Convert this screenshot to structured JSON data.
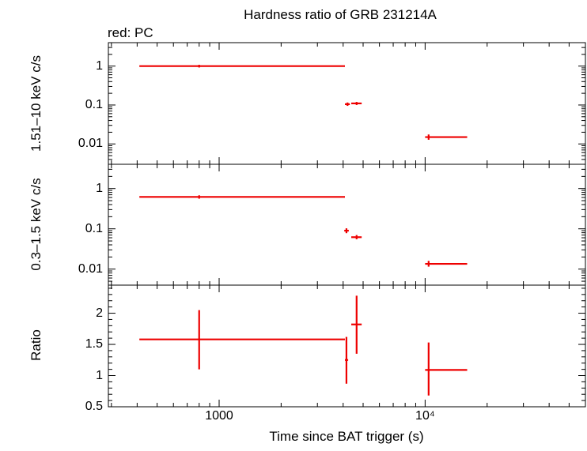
{
  "title": "Hardness ratio of GRB 231214A",
  "legend_note": "red: PC",
  "xlabel": "Time since BAT trigger (s)",
  "colors": {
    "data": "#ee0000",
    "axes": "#000000",
    "background": "#ffffff"
  },
  "chart_data": [
    {
      "type": "scatter",
      "panel": "top",
      "ylabel": "1.51–10 keV c/s",
      "xscale": "log",
      "yscale": "log",
      "xlim": [
        290,
        60000
      ],
      "ylim": [
        0.003,
        4
      ],
      "xticks": [
        1000,
        10000
      ],
      "xtick_labels": [
        "1000",
        "10⁴"
      ],
      "yticks": [
        1,
        0.1,
        0.01
      ],
      "ytick_labels": [
        "1",
        "0.1",
        "0.01"
      ],
      "series": [
        {
          "color": "#ee0000",
          "points": [
            {
              "x": 800,
              "xlo": 410,
              "xhi": 4080,
              "y": 1.0,
              "ylo": 0.92,
              "yhi": 1.08
            },
            {
              "x": 4200,
              "xlo": 4080,
              "xhi": 4310,
              "y": 0.105,
              "ylo": 0.095,
              "yhi": 0.116
            },
            {
              "x": 4650,
              "xlo": 4380,
              "xhi": 4920,
              "y": 0.11,
              "ylo": 0.1,
              "yhi": 0.12
            },
            {
              "x": 10400,
              "xlo": 10000,
              "xhi": 16000,
              "y": 0.015,
              "ylo": 0.0128,
              "yhi": 0.0175
            }
          ]
        }
      ]
    },
    {
      "type": "scatter",
      "panel": "middle",
      "ylabel": "0.3–1.5 keV c/s",
      "xscale": "log",
      "yscale": "log",
      "xlim": [
        290,
        60000
      ],
      "ylim": [
        0.004,
        4
      ],
      "xticks": [
        1000,
        10000
      ],
      "xtick_labels": [
        "1000",
        "10⁴"
      ],
      "yticks": [
        1,
        0.1,
        0.01
      ],
      "ytick_labels": [
        "1",
        "0.1",
        "0.01"
      ],
      "series": [
        {
          "color": "#ee0000",
          "points": [
            {
              "x": 800,
              "xlo": 410,
              "xhi": 4080,
              "y": 0.62,
              "ylo": 0.56,
              "yhi": 0.68
            },
            {
              "x": 4150,
              "xlo": 4050,
              "xhi": 4260,
              "y": 0.09,
              "ylo": 0.078,
              "yhi": 0.103
            },
            {
              "x": 4650,
              "xlo": 4380,
              "xhi": 4920,
              "y": 0.062,
              "ylo": 0.055,
              "yhi": 0.07
            },
            {
              "x": 10400,
              "xlo": 10000,
              "xhi": 16000,
              "y": 0.0135,
              "ylo": 0.0115,
              "yhi": 0.016
            }
          ]
        }
      ]
    },
    {
      "type": "scatter",
      "panel": "bottom",
      "ylabel": "Ratio",
      "xscale": "log",
      "yscale": "linear",
      "xlim": [
        290,
        60000
      ],
      "ylim": [
        0.5,
        2.45
      ],
      "xticks": [
        1000,
        10000
      ],
      "xtick_labels": [
        "1000",
        "10⁴"
      ],
      "yticks": [
        0.5,
        1,
        1.5,
        2
      ],
      "ytick_labels": [
        "0.5",
        "1",
        "1.5",
        "2"
      ],
      "series": [
        {
          "color": "#ee0000",
          "points": [
            {
              "x": 800,
              "xlo": 410,
              "xhi": 4080,
              "y": 1.58,
              "ylo": 1.1,
              "yhi": 2.05
            },
            {
              "x": 4150,
              "xlo": 4080,
              "xhi": 4230,
              "y": 1.25,
              "ylo": 0.87,
              "yhi": 1.62
            },
            {
              "x": 4650,
              "xlo": 4380,
              "xhi": 4920,
              "y": 1.82,
              "ylo": 1.35,
              "yhi": 2.28
            },
            {
              "x": 10400,
              "xlo": 10000,
              "xhi": 16000,
              "y": 1.09,
              "ylo": 0.68,
              "yhi": 1.53
            }
          ]
        }
      ]
    }
  ]
}
